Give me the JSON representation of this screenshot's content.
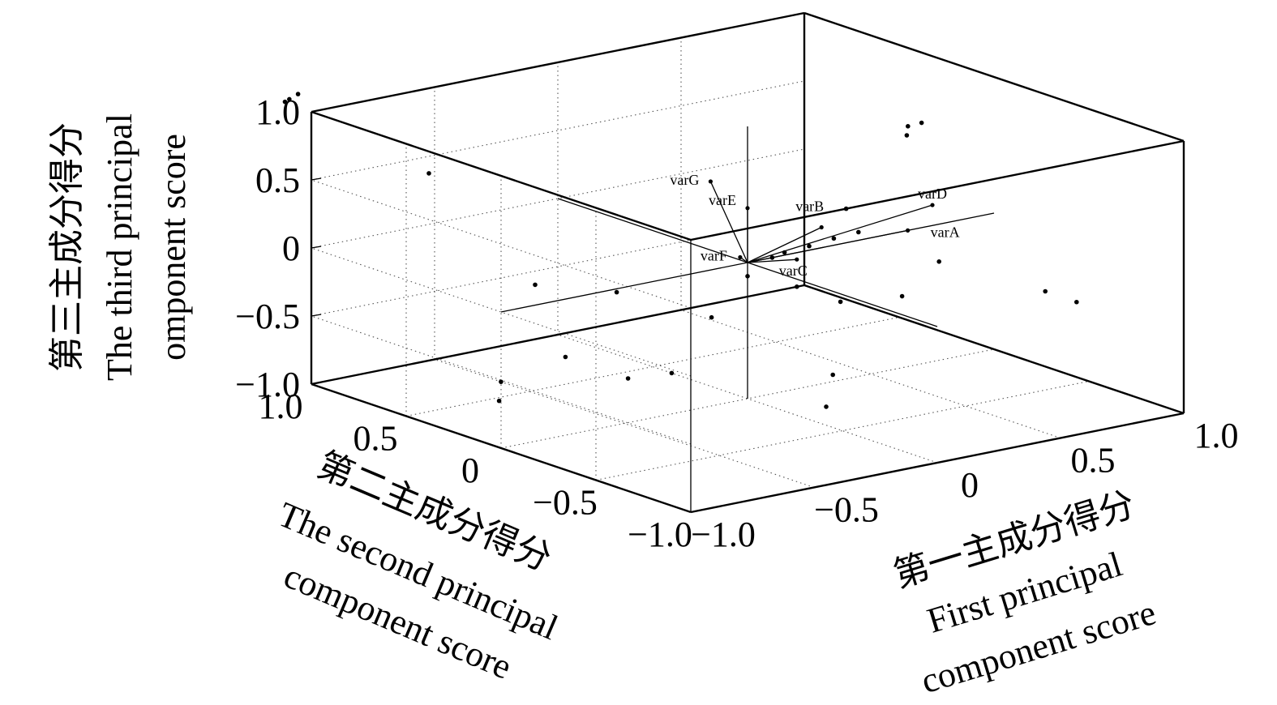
{
  "chart_data": {
    "type": "scatter",
    "projection": "3d",
    "title": "",
    "xlabel": [
      "第一主成分得分",
      "First principal",
      "component score"
    ],
    "ylabel": [
      "第二主成分得分",
      "The second principal",
      "component score"
    ],
    "zlabel": [
      "第三主成分得分",
      "The third principal",
      "omponent score"
    ],
    "xlim": [
      -1.0,
      1.0
    ],
    "ylim": [
      -1.0,
      1.0
    ],
    "zlim": [
      -1.0,
      1.0
    ],
    "x_ticks": [
      "−1.0",
      "−0.5",
      "0",
      "0.5",
      "1.0"
    ],
    "y_ticks": [
      "−1.0",
      "−0.5",
      "0",
      "0.5",
      "1.0"
    ],
    "z_ticks": [
      "−1.0",
      "−0.5",
      "0",
      "0.5",
      "1.0"
    ],
    "grid": true,
    "loadings": [
      {
        "name": "varA",
        "x": 0.65,
        "y": 0.0,
        "z": 0.0
      },
      {
        "name": "varB",
        "x": 0.3,
        "y": 0.0,
        "z": 0.15
      },
      {
        "name": "varC",
        "x": 0.2,
        "y": 0.0,
        "z": -0.05
      },
      {
        "name": "varD",
        "x": 0.75,
        "y": 0.0,
        "z": 0.15
      },
      {
        "name": "varE",
        "x": 0.0,
        "y": 0.0,
        "z": 0.4
      },
      {
        "name": "varF",
        "x": -0.03,
        "y": 0.0,
        "z": 0.05
      },
      {
        "name": "varG",
        "x": -0.15,
        "y": 0.0,
        "z": 0.65
      }
    ],
    "scores": [
      {
        "x": -0.9,
        "y": 1.2,
        "z": 1.0
      },
      {
        "x": -0.92,
        "y": 1.22,
        "z": 0.96
      },
      {
        "x": -0.93,
        "y": 1.23,
        "z": 0.94
      },
      {
        "x": -0.6,
        "y": 0.9,
        "z": 0.45
      },
      {
        "x": -0.7,
        "y": 0.4,
        "z": -0.95
      },
      {
        "x": -0.4,
        "y": 0.6,
        "z": -0.3
      },
      {
        "x": -0.3,
        "y": 0.3,
        "z": -0.25
      },
      {
        "x": -0.2,
        "y": 0.7,
        "z": -0.95
      },
      {
        "x": -0.5,
        "y": 0.65,
        "z": -1.0
      },
      {
        "x": 0.0,
        "y": 0.4,
        "z": -1.0
      },
      {
        "x": -0.1,
        "y": 0.5,
        "z": -1.05
      },
      {
        "x": -0.3,
        "y": -0.2,
        "z": -0.2
      },
      {
        "x": 0.0,
        "y": 0.0,
        "z": -0.1
      },
      {
        "x": 0.2,
        "y": 0.0,
        "z": -0.25
      },
      {
        "x": 0.3,
        "y": -0.1,
        "z": -0.35
      },
      {
        "x": 0.7,
        "y": -0.1,
        "z": -0.2
      },
      {
        "x": 0.8,
        "y": 0.2,
        "z": 0.55
      },
      {
        "x": 0.82,
        "y": 0.22,
        "z": 0.6
      },
      {
        "x": 0.86,
        "y": 0.2,
        "z": 0.62
      },
      {
        "x": 0.4,
        "y": 0.0,
        "z": 0.25
      },
      {
        "x": 0.9,
        "y": -0.4,
        "z": -0.35
      },
      {
        "x": 0.95,
        "y": -0.5,
        "z": -0.4
      },
      {
        "x": 0.55,
        "y": -0.1,
        "z": -0.4
      },
      {
        "x": 0.5,
        "y": 0.2,
        "z": -1.1
      },
      {
        "x": 0.55,
        "y": 0.3,
        "z": -1.4
      },
      {
        "x": 0.1,
        "y": 0.0,
        "z": 0.0
      },
      {
        "x": 0.15,
        "y": 0.0,
        "z": 0.02
      },
      {
        "x": 0.25,
        "y": 0.0,
        "z": 0.03
      },
      {
        "x": 0.35,
        "y": 0.0,
        "z": 0.05
      },
      {
        "x": 0.45,
        "y": 0.0,
        "z": 0.06
      }
    ]
  }
}
